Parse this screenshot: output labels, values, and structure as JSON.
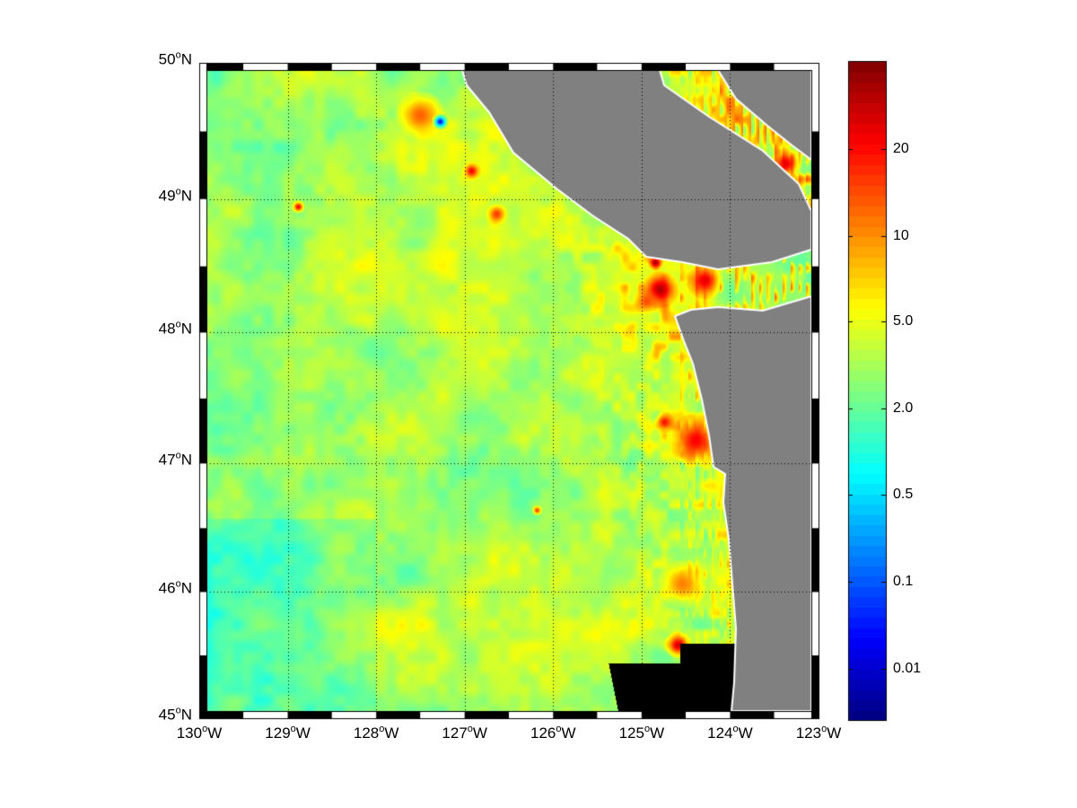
{
  "map": {
    "projection": "mercator",
    "lon_range": [
      -130,
      -123
    ],
    "lat_range": [
      45,
      50
    ],
    "grid": "dotted",
    "land_color": "#808080",
    "coastline_color": "#ffffff",
    "lon_labels": [
      {
        "deg": "130",
        "hemi": "W",
        "lon": -130
      },
      {
        "deg": "129",
        "hemi": "W",
        "lon": -129
      },
      {
        "deg": "128",
        "hemi": "W",
        "lon": -128
      },
      {
        "deg": "127",
        "hemi": "W",
        "lon": -127
      },
      {
        "deg": "126",
        "hemi": "W",
        "lon": -126
      },
      {
        "deg": "125",
        "hemi": "W",
        "lon": -125
      },
      {
        "deg": "124",
        "hemi": "W",
        "lon": -124
      },
      {
        "deg": "123",
        "hemi": "W",
        "lon": -123
      }
    ],
    "lat_labels": [
      {
        "deg": "45",
        "hemi": "N",
        "lat": 45
      },
      {
        "deg": "46",
        "hemi": "N",
        "lat": 46
      },
      {
        "deg": "47",
        "hemi": "N",
        "lat": 47
      },
      {
        "deg": "48",
        "hemi": "N",
        "lat": 48
      },
      {
        "deg": "49",
        "hemi": "N",
        "lat": 49
      },
      {
        "deg": "50",
        "hemi": "N",
        "lat": 50
      }
    ]
  },
  "colorbar": {
    "colormap": "jet",
    "ticks": [
      "20",
      "10",
      "5.0",
      "2.0",
      "0.5",
      "0.1",
      "0.01"
    ]
  }
}
